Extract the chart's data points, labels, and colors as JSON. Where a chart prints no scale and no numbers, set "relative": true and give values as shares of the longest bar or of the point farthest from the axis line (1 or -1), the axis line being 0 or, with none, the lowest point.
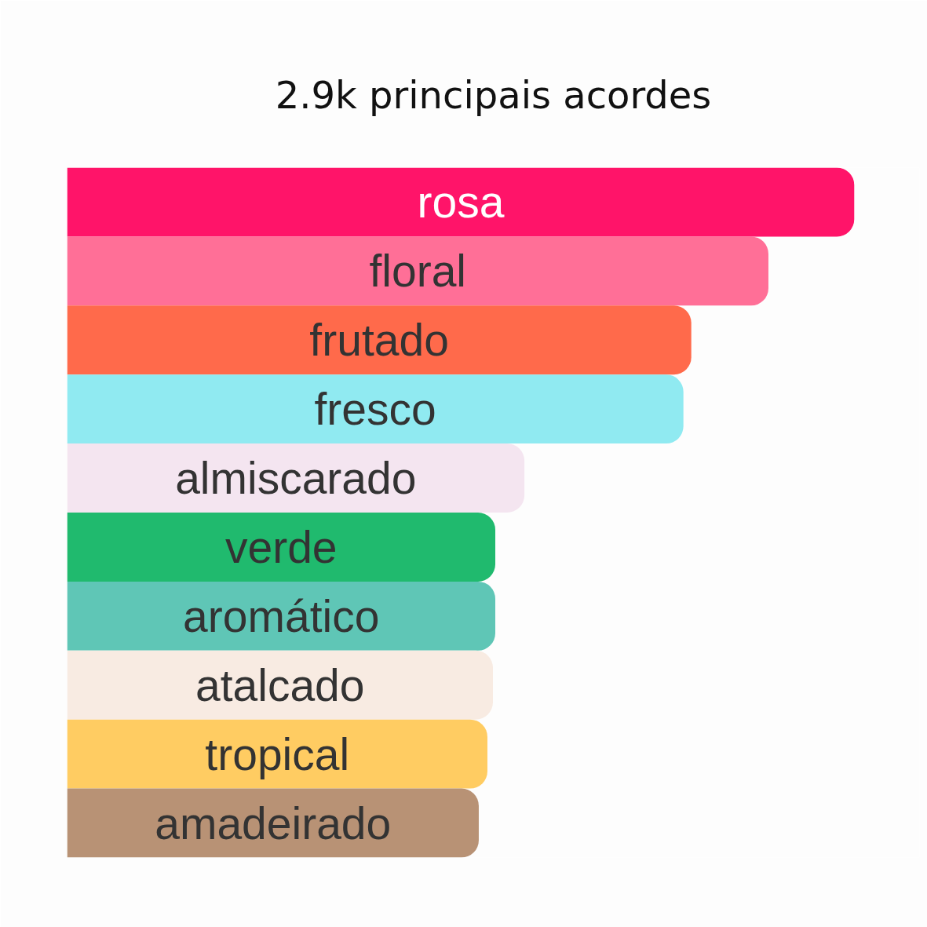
{
  "chart_data": {
    "type": "bar",
    "orientation": "horizontal",
    "relative": true,
    "title": "2.9k principais acordes",
    "categories": [
      "rosa",
      "floral",
      "frutado",
      "fresco",
      "almiscarado",
      "verde",
      "aromático",
      "atalcado",
      "tropical",
      "amadeirado"
    ],
    "values": [
      1,
      0.891,
      0.793,
      0.783,
      0.581,
      0.544,
      0.544,
      0.541,
      0.534,
      0.523
    ],
    "colors": [
      "#ff1469",
      "#ff6f97",
      "#ff6a4b",
      "#90eaf1",
      "#f4e5f0",
      "#20ba6e",
      "#5fc6b6",
      "#f8ebe2",
      "#ffcc62",
      "#b89275"
    ]
  }
}
